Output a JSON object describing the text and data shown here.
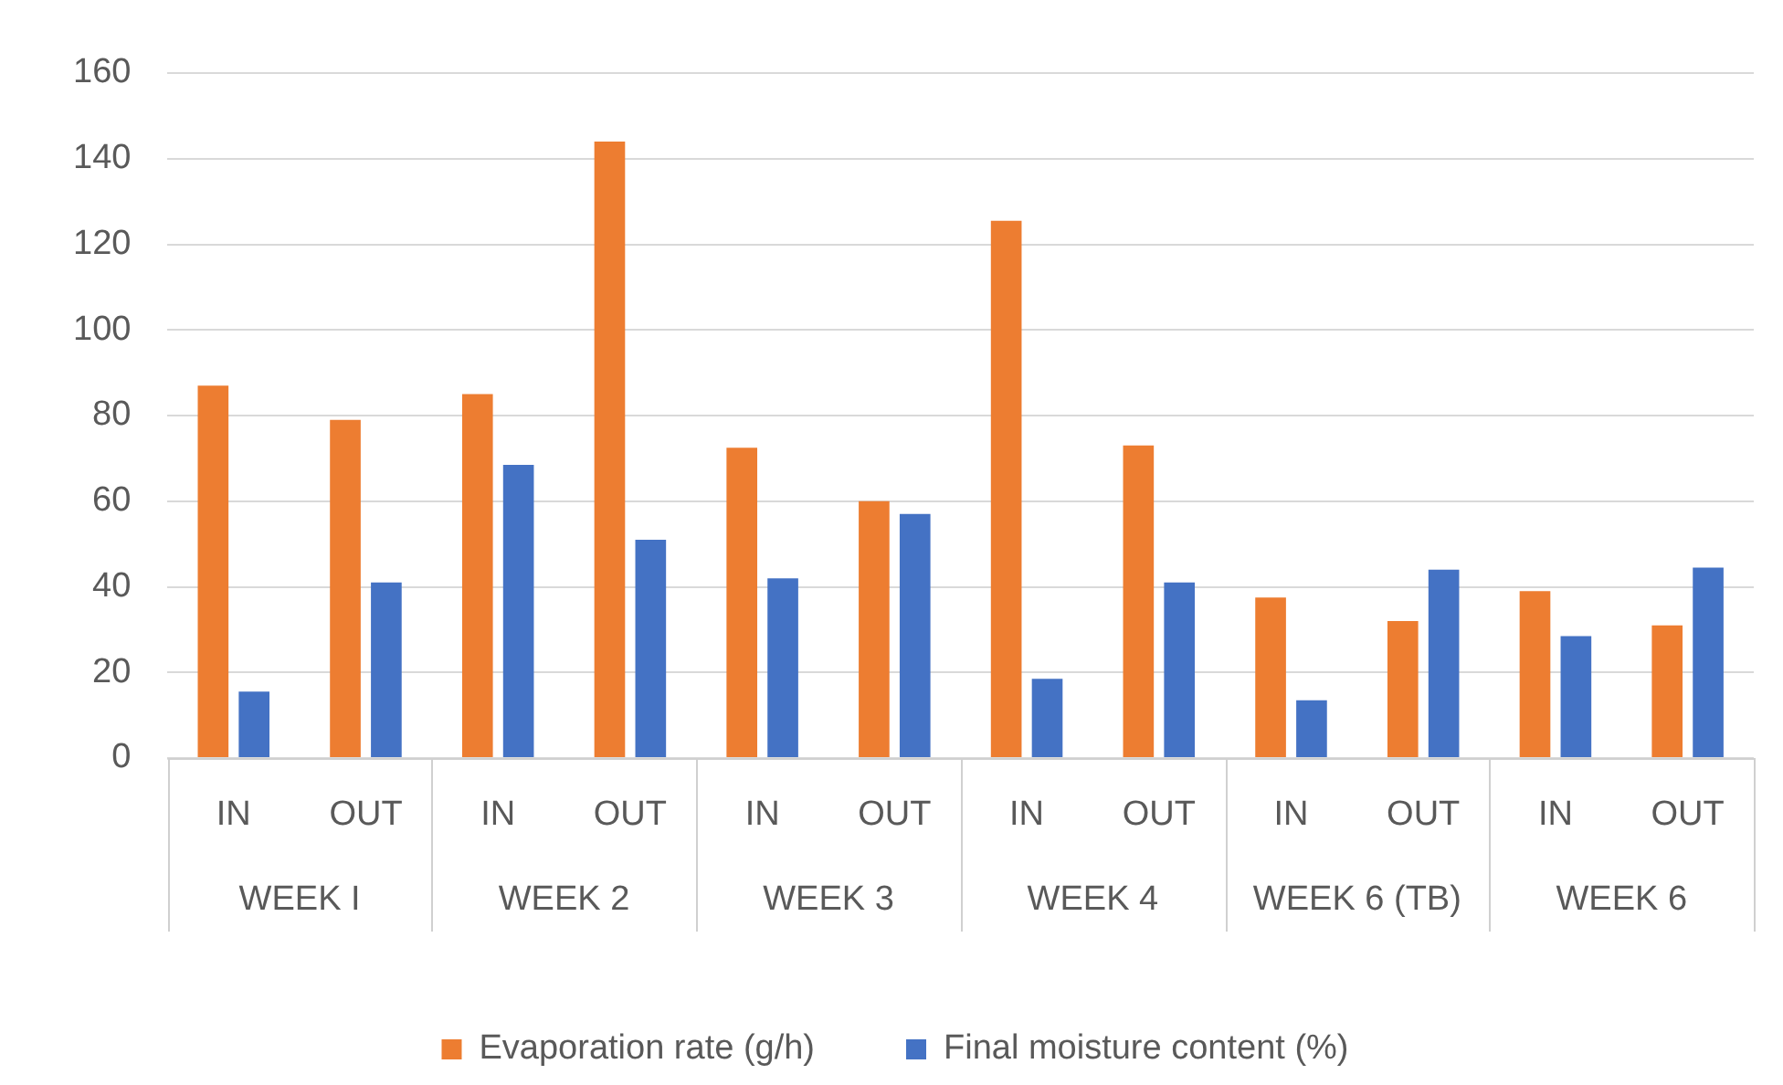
{
  "chart_data": {
    "type": "bar",
    "categories": [
      "IN",
      "OUT",
      "IN",
      "OUT",
      "IN",
      "OUT",
      "IN",
      "OUT",
      "IN",
      "OUT",
      "IN",
      "OUT"
    ],
    "annotations": [
      "WEEK I",
      "WEEK 2",
      "WEEK 3",
      "WEEK 4",
      "WEEK 6 (TB)",
      "WEEK 6"
    ],
    "series": [
      {
        "name": "Evaporation rate (g/h)",
        "color": "#ed7d31",
        "values": [
          87,
          79,
          85,
          144,
          72.5,
          60,
          125.5,
          73,
          37.5,
          32,
          39,
          31
        ]
      },
      {
        "name": "Final moisture content (%)",
        "color": "#4472c4",
        "values": [
          15.5,
          41,
          68.5,
          51,
          42,
          57,
          18.5,
          41,
          13.5,
          44,
          28.5,
          44.5
        ]
      }
    ],
    "ylim": [
      0,
      160
    ],
    "yticks": [
      0,
      20,
      40,
      60,
      80,
      100,
      120,
      140,
      160
    ],
    "grid": "y",
    "legend": "bottom"
  }
}
